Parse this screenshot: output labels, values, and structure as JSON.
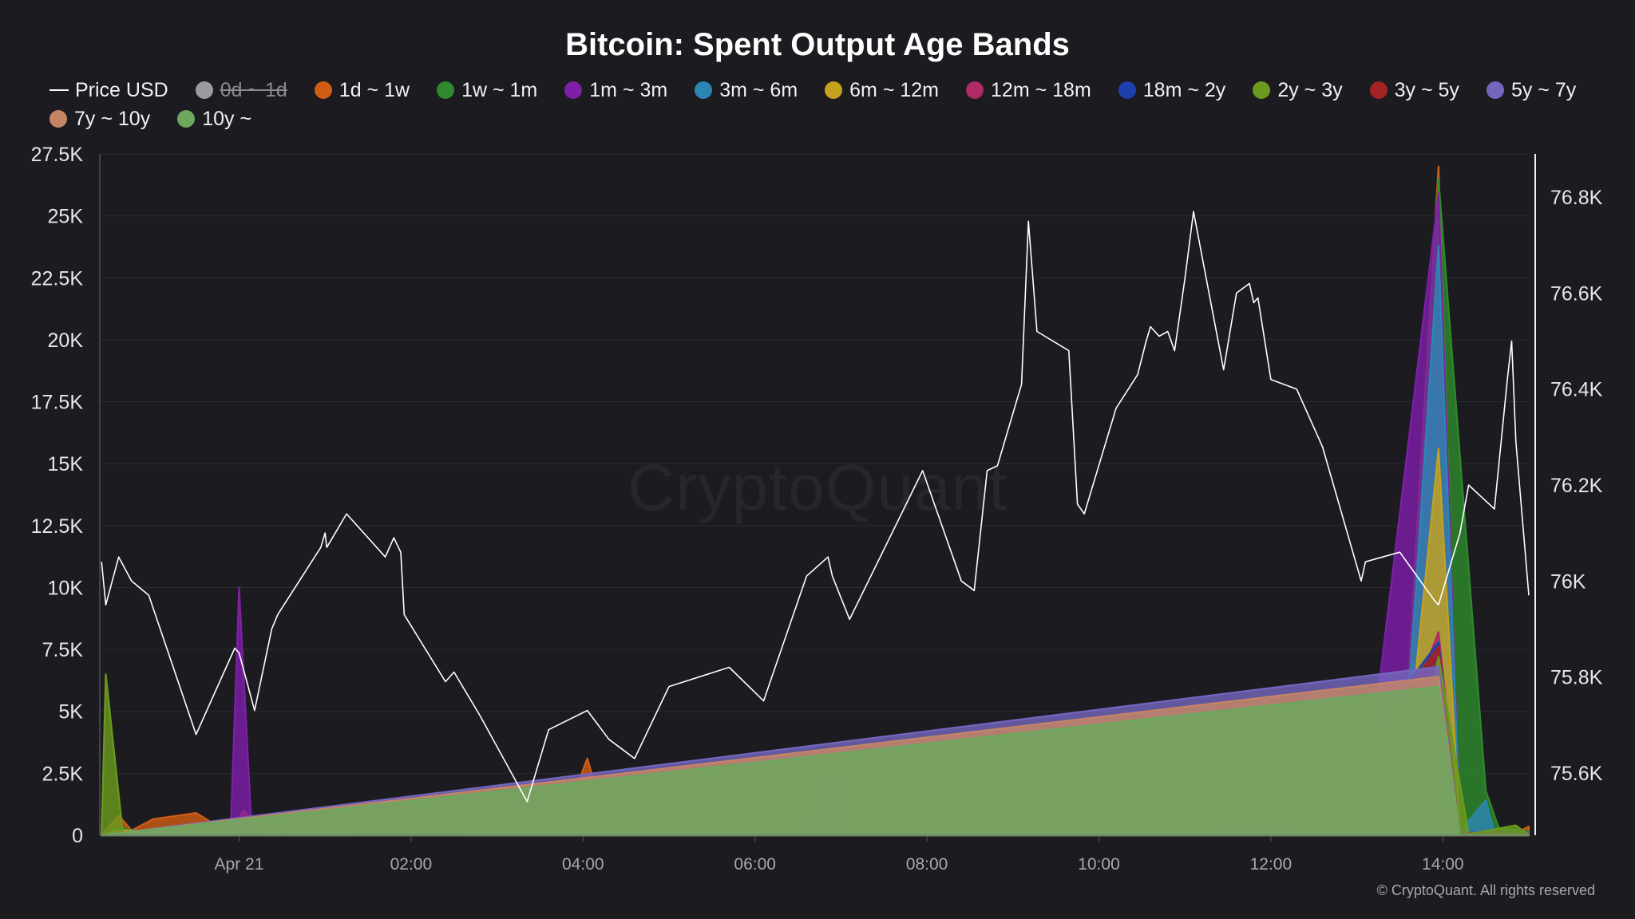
{
  "chart_data": {
    "type": "area",
    "title": "Bitcoin: Spent Output Age Bands",
    "x_ticks": [
      "Apr 21",
      "02:00",
      "04:00",
      "06:00",
      "08:00",
      "10:00",
      "12:00",
      "14:00"
    ],
    "x_tick_hours": [
      0,
      2,
      4,
      6,
      8,
      10,
      12,
      14
    ],
    "x_range_hours": [
      -1.62,
      15
    ],
    "y_left": {
      "ticks": [
        "0",
        "2.5K",
        "5K",
        "7.5K",
        "10K",
        "12.5K",
        "15K",
        "17.5K",
        "20K",
        "22.5K",
        "25K",
        "27.5K"
      ],
      "range": [
        0,
        27500
      ]
    },
    "y_right": {
      "ticks": [
        "75.6K",
        "75.8K",
        "76K",
        "76.2K",
        "76.4K",
        "76.6K",
        "76.8K"
      ],
      "range": [
        75470,
        76890
      ]
    },
    "price": {
      "name": "Price USD",
      "color": "#ffffff",
      "points": [
        [
          -1.6,
          76.04
        ],
        [
          -1.55,
          75.95
        ],
        [
          -1.4,
          76.05
        ],
        [
          -1.25,
          76.0
        ],
        [
          -1.05,
          75.97
        ],
        [
          -0.5,
          75.68
        ],
        [
          -0.2,
          75.8
        ],
        [
          -0.05,
          75.86
        ],
        [
          0.0,
          75.85
        ],
        [
          0.18,
          75.73
        ],
        [
          0.38,
          75.9
        ],
        [
          0.45,
          75.93
        ],
        [
          0.95,
          76.07
        ],
        [
          1.0,
          76.1
        ],
        [
          1.02,
          76.07
        ],
        [
          1.25,
          76.14
        ],
        [
          1.7,
          76.05
        ],
        [
          1.8,
          76.09
        ],
        [
          1.88,
          76.06
        ],
        [
          1.92,
          75.93
        ],
        [
          2.4,
          75.79
        ],
        [
          2.5,
          75.81
        ],
        [
          2.8,
          75.72
        ],
        [
          3.35,
          75.54
        ],
        [
          3.6,
          75.69
        ],
        [
          4.05,
          75.73
        ],
        [
          4.3,
          75.67
        ],
        [
          4.6,
          75.63
        ],
        [
          5.0,
          75.78
        ],
        [
          5.7,
          75.82
        ],
        [
          6.1,
          75.75
        ],
        [
          6.6,
          76.01
        ],
        [
          6.85,
          76.05
        ],
        [
          6.9,
          76.01
        ],
        [
          7.1,
          75.92
        ],
        [
          7.95,
          76.23
        ],
        [
          8.4,
          76.0
        ],
        [
          8.55,
          75.98
        ],
        [
          8.7,
          76.23
        ],
        [
          8.82,
          76.24
        ],
        [
          9.1,
          76.41
        ],
        [
          9.18,
          76.75
        ],
        [
          9.28,
          76.52
        ],
        [
          9.65,
          76.48
        ],
        [
          9.75,
          76.16
        ],
        [
          9.83,
          76.14
        ],
        [
          10.2,
          76.36
        ],
        [
          10.45,
          76.43
        ],
        [
          10.55,
          76.5
        ],
        [
          10.6,
          76.53
        ],
        [
          10.7,
          76.51
        ],
        [
          10.8,
          76.52
        ],
        [
          10.88,
          76.48
        ],
        [
          11.0,
          76.63
        ],
        [
          11.1,
          76.77
        ],
        [
          11.45,
          76.44
        ],
        [
          11.6,
          76.6
        ],
        [
          11.75,
          76.62
        ],
        [
          11.8,
          76.58
        ],
        [
          11.85,
          76.59
        ],
        [
          12.0,
          76.42
        ],
        [
          12.3,
          76.4
        ],
        [
          12.6,
          76.28
        ],
        [
          13.05,
          76.0
        ],
        [
          13.1,
          76.04
        ],
        [
          13.5,
          76.06
        ],
        [
          13.9,
          75.96
        ],
        [
          13.95,
          75.95
        ],
        [
          14.2,
          76.1
        ],
        [
          14.3,
          76.2
        ],
        [
          14.6,
          76.15
        ],
        [
          14.75,
          76.42
        ],
        [
          14.8,
          76.5
        ],
        [
          14.85,
          76.29
        ],
        [
          15.0,
          75.97
        ]
      ]
    },
    "series": [
      {
        "name": "0d ~ 1d",
        "color": "#9a9aa0",
        "hidden": true,
        "values": []
      },
      {
        "name": "1d ~ 1w",
        "color": "#cf5d15",
        "values": [
          [
            -1.6,
            0
          ],
          [
            -1.4,
            800
          ],
          [
            -1.25,
            200
          ],
          [
            -1.0,
            650
          ],
          [
            -0.5,
            900
          ],
          [
            -0.1,
            50
          ],
          [
            0.05,
            1000
          ],
          [
            0.35,
            0
          ],
          [
            1.1,
            800
          ],
          [
            1.2,
            150
          ],
          [
            1.75,
            300
          ],
          [
            1.9,
            0
          ],
          [
            3.2,
            300
          ],
          [
            3.8,
            800
          ],
          [
            4.05,
            3100
          ],
          [
            4.3,
            100
          ],
          [
            6.15,
            300
          ],
          [
            6.6,
            500
          ],
          [
            6.9,
            2600
          ],
          [
            7.1,
            150
          ],
          [
            7.95,
            850
          ],
          [
            8.4,
            600
          ],
          [
            8.7,
            100
          ],
          [
            9.2,
            200
          ],
          [
            9.6,
            900
          ],
          [
            9.8,
            100
          ],
          [
            10.2,
            200
          ],
          [
            10.4,
            50
          ],
          [
            10.55,
            850
          ],
          [
            10.7,
            50
          ],
          [
            11.2,
            100
          ],
          [
            11.5,
            150
          ],
          [
            12.3,
            1000
          ],
          [
            12.8,
            200
          ],
          [
            13.5,
            500
          ],
          [
            13.95,
            27000
          ],
          [
            14.2,
            200
          ],
          [
            14.8,
            0
          ],
          [
            15.0,
            350
          ]
        ]
      },
      {
        "name": "1w ~ 1m",
        "color": "#2e8a2c",
        "values": [
          [
            -1.6,
            0
          ],
          [
            -1.4,
            300
          ],
          [
            -1.0,
            100
          ],
          [
            -0.5,
            150
          ],
          [
            0.05,
            300
          ],
          [
            1.1,
            250
          ],
          [
            3.2,
            100
          ],
          [
            4.05,
            200
          ],
          [
            6.15,
            100
          ],
          [
            6.6,
            200
          ],
          [
            6.9,
            500
          ],
          [
            7.1,
            200
          ],
          [
            7.95,
            600
          ],
          [
            8.4,
            250
          ],
          [
            9.6,
            350
          ],
          [
            10.2,
            350
          ],
          [
            10.55,
            200
          ],
          [
            12.3,
            900
          ],
          [
            12.8,
            150
          ],
          [
            13.5,
            300
          ],
          [
            13.95,
            26500
          ],
          [
            14.5,
            1800
          ],
          [
            14.65,
            300
          ],
          [
            15.0,
            150
          ]
        ]
      },
      {
        "name": "1m ~ 3m",
        "color": "#7e1fa8",
        "values": [
          [
            -1.6,
            0
          ],
          [
            -0.1,
            0
          ],
          [
            0.0,
            10000
          ],
          [
            0.15,
            0
          ],
          [
            6.6,
            0
          ],
          [
            6.9,
            2600
          ],
          [
            7.05,
            0
          ],
          [
            7.95,
            200
          ],
          [
            8.4,
            100
          ],
          [
            9.6,
            250
          ],
          [
            10.2,
            100
          ],
          [
            12.3,
            400
          ],
          [
            12.8,
            100
          ],
          [
            12.98,
            1900
          ],
          [
            13.05,
            100
          ],
          [
            13.95,
            25900
          ],
          [
            14.2,
            200
          ],
          [
            15.0,
            100
          ]
        ]
      },
      {
        "name": "3m ~ 6m",
        "color": "#2b86b2",
        "values": [
          [
            -1.6,
            0
          ],
          [
            0.05,
            200
          ],
          [
            1.1,
            100
          ],
          [
            4.05,
            150
          ],
          [
            6.6,
            100
          ],
          [
            7.95,
            300
          ],
          [
            8.4,
            500
          ],
          [
            8.6,
            150
          ],
          [
            9.6,
            400
          ],
          [
            10.2,
            150
          ],
          [
            12.3,
            300
          ],
          [
            12.8,
            100
          ],
          [
            13.5,
            150
          ],
          [
            13.95,
            23800
          ],
          [
            14.2,
            150
          ],
          [
            14.5,
            1400
          ],
          [
            14.6,
            100
          ],
          [
            15.0,
            100
          ]
        ]
      },
      {
        "name": "6m ~ 12m",
        "color": "#c5a21b",
        "values": [
          [
            -1.6,
            0
          ],
          [
            -1.4,
            200
          ],
          [
            0.05,
            100
          ],
          [
            1.1,
            100
          ],
          [
            4.05,
            100
          ],
          [
            6.6,
            100
          ],
          [
            7.95,
            200
          ],
          [
            8.4,
            150
          ],
          [
            9.6,
            200
          ],
          [
            10.2,
            100
          ],
          [
            12.3,
            200
          ],
          [
            12.8,
            100
          ],
          [
            13.5,
            200
          ],
          [
            13.95,
            15600
          ],
          [
            14.2,
            100
          ],
          [
            15.0,
            50
          ]
        ]
      },
      {
        "name": "12m ~ 18m",
        "color": "#b02b66",
        "values": [
          [
            -1.6,
            0
          ],
          [
            0.05,
            50
          ],
          [
            4.05,
            50
          ],
          [
            7.95,
            100
          ],
          [
            9.6,
            100
          ],
          [
            11.3,
            250
          ],
          [
            12.3,
            150
          ],
          [
            12.98,
            1200
          ],
          [
            13.05,
            100
          ],
          [
            13.95,
            8200
          ],
          [
            14.2,
            100
          ],
          [
            15.0,
            50
          ]
        ]
      },
      {
        "name": "18m ~ 2y",
        "color": "#1e3fae",
        "values": [
          [
            -1.6,
            0
          ],
          [
            4.05,
            50
          ],
          [
            7.95,
            50
          ],
          [
            8.4,
            200
          ],
          [
            9.6,
            50
          ],
          [
            12.3,
            100
          ],
          [
            13.95,
            7800
          ],
          [
            14.2,
            50
          ],
          [
            15.0,
            0
          ]
        ]
      },
      {
        "name": "2y ~ 3y",
        "color": "#6b9a1e",
        "values": [
          [
            -1.6,
            0
          ],
          [
            -1.55,
            6500
          ],
          [
            -1.35,
            0
          ],
          [
            -1.0,
            0
          ],
          [
            -0.5,
            50
          ],
          [
            0.05,
            0
          ],
          [
            0.3,
            0
          ],
          [
            0.38,
            600
          ],
          [
            0.5,
            0
          ],
          [
            1.1,
            0
          ],
          [
            7.95,
            50
          ],
          [
            8.4,
            50
          ],
          [
            9.6,
            100
          ],
          [
            12.3,
            150
          ],
          [
            13.5,
            100
          ],
          [
            13.95,
            7200
          ],
          [
            14.3,
            50
          ],
          [
            14.85,
            400
          ],
          [
            15.0,
            0
          ]
        ]
      },
      {
        "name": "3y ~ 5y",
        "color": "#a32222",
        "values": [
          [
            -1.6,
            0
          ],
          [
            12.3,
            50
          ],
          [
            13.95,
            7600
          ],
          [
            14.2,
            30
          ],
          [
            15.0,
            0
          ]
        ]
      },
      {
        "name": "5y ~ 7y",
        "color": "#7466bd",
        "values": [
          [
            -1.6,
            0
          ],
          [
            13.95,
            6800
          ],
          [
            14.2,
            20
          ],
          [
            15.0,
            0
          ]
        ]
      },
      {
        "name": "7y ~ 10y",
        "color": "#c48565",
        "values": [
          [
            -1.6,
            0
          ],
          [
            13.95,
            6400
          ],
          [
            14.2,
            20
          ],
          [
            15.0,
            0
          ]
        ]
      },
      {
        "name": "10y ~",
        "color": "#6ba85e",
        "values": [
          [
            -1.6,
            0
          ],
          [
            13.95,
            6000
          ],
          [
            14.2,
            20
          ],
          [
            15.0,
            0
          ]
        ]
      }
    ],
    "legend_position": "top",
    "grid": true
  },
  "watermark": "CryptoQuant",
  "copyright": "© CryptoQuant. All rights reserved"
}
